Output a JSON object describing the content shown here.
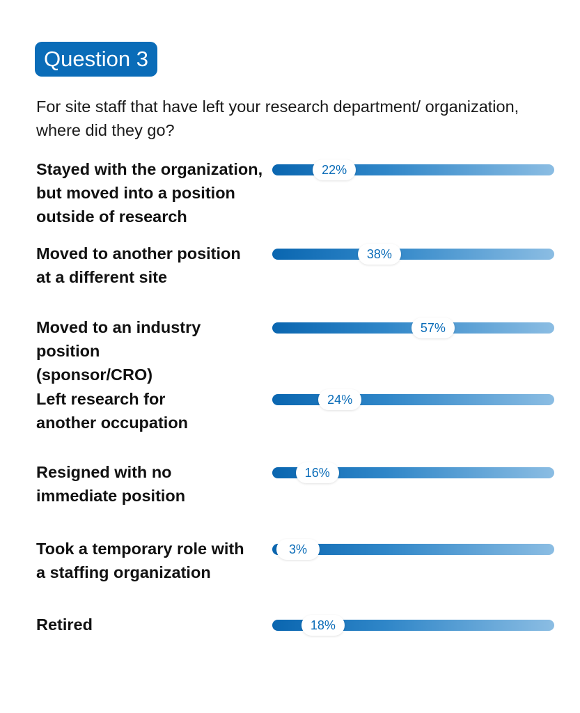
{
  "header": {
    "badge": "Question 3",
    "question": "For site staff that have left your research department/ organization, where did they go?"
  },
  "colors": {
    "accent": "#0a6cb8",
    "bar_start": "#0a66b0",
    "bar_end": "#8bbde3"
  },
  "chart_data": {
    "type": "bar",
    "orientation": "horizontal",
    "categories": [
      "Stayed with the organization, but moved into a position outside of research",
      "Moved to another position at a different site",
      "Moved to an industry position (sponsor/CRO)",
      "Left research for another occupation",
      "Resigned with no immediate position",
      "Took a temporary role with a staffing organization",
      "Retired"
    ],
    "values": [
      22,
      38,
      57,
      24,
      16,
      3,
      18
    ],
    "data_labels": [
      "22%",
      "38%",
      "57%",
      "24%",
      "16%",
      "3%",
      "18%"
    ],
    "xlim": [
      0,
      100
    ],
    "grid": false
  }
}
